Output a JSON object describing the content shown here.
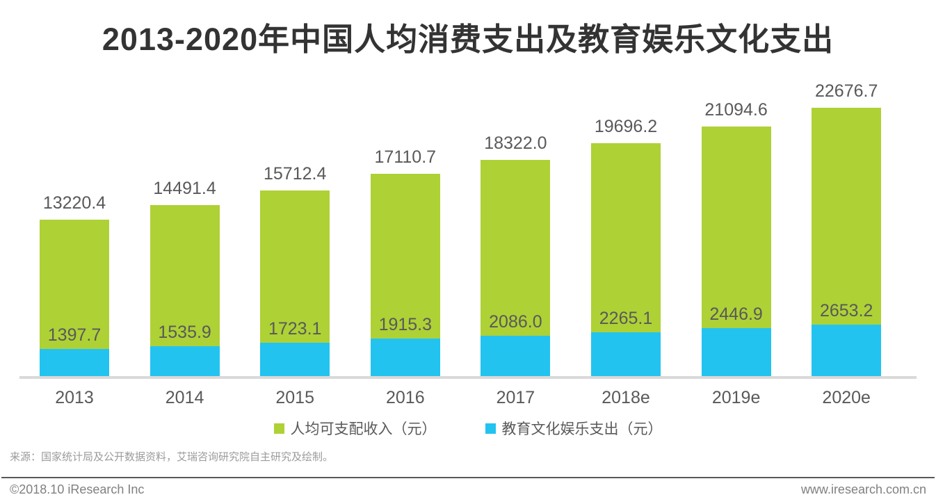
{
  "title": "2013-2020年中国人均消费支出及教育娱乐文化支出",
  "chart_data": {
    "type": "bar",
    "subtype": "overlay-stacked-column",
    "title": "2013-2020年中国人均消费支出及教育娱乐文化支出",
    "categories": [
      "2013",
      "2014",
      "2015",
      "2016",
      "2017",
      "2018e",
      "2019e",
      "2020e"
    ],
    "series": [
      {
        "name": "人均可支配收入（元）",
        "color": "#aed136",
        "values": [
          13220.4,
          14491.4,
          15712.4,
          17110.7,
          18322.0,
          19696.2,
          21094.6,
          22676.7
        ],
        "labels": [
          "13220.4",
          "14491.4",
          "15712.4",
          "17110.7",
          "18322.0",
          "19696.2",
          "21094.6",
          "22676.7"
        ]
      },
      {
        "name": "教育文化娱乐支出（元）",
        "color": "#23c3f0",
        "values": [
          1397.7,
          1535.9,
          1723.1,
          1915.3,
          2086.0,
          2265.1,
          2446.9,
          2653.2
        ],
        "labels": [
          "1397.7",
          "1535.9",
          "1723.1",
          "1915.3",
          "2086.0",
          "2265.1",
          "2446.9",
          "2653.2"
        ]
      }
    ],
    "xlabel": "",
    "ylabel": "",
    "grid": false,
    "y_axis_shown": false,
    "value_labels_shown": true,
    "legend_position": "bottom"
  },
  "legend": {
    "items": [
      {
        "label": "人均可支配收入（元）",
        "color": "#aed136"
      },
      {
        "label": "教育文化娱乐支出（元）",
        "color": "#23c3f0"
      }
    ]
  },
  "source_note": "来源：国家统计局及公开数据资料，艾瑞咨询研究院自主研究及绘制。",
  "footer": {
    "left": "©2018.10 iResearch Inc",
    "right": "www.iresearch.com.cn"
  },
  "colors": {
    "green": "#aed136",
    "blue": "#23c3f0",
    "value_label": "#595959",
    "axis_label": "#595959",
    "axis_line": "#d9d9d9",
    "title": "#333333",
    "source": "#9b9b9b",
    "footer_text": "#808080",
    "footer_line": "#595959",
    "background": "#ffffff"
  }
}
